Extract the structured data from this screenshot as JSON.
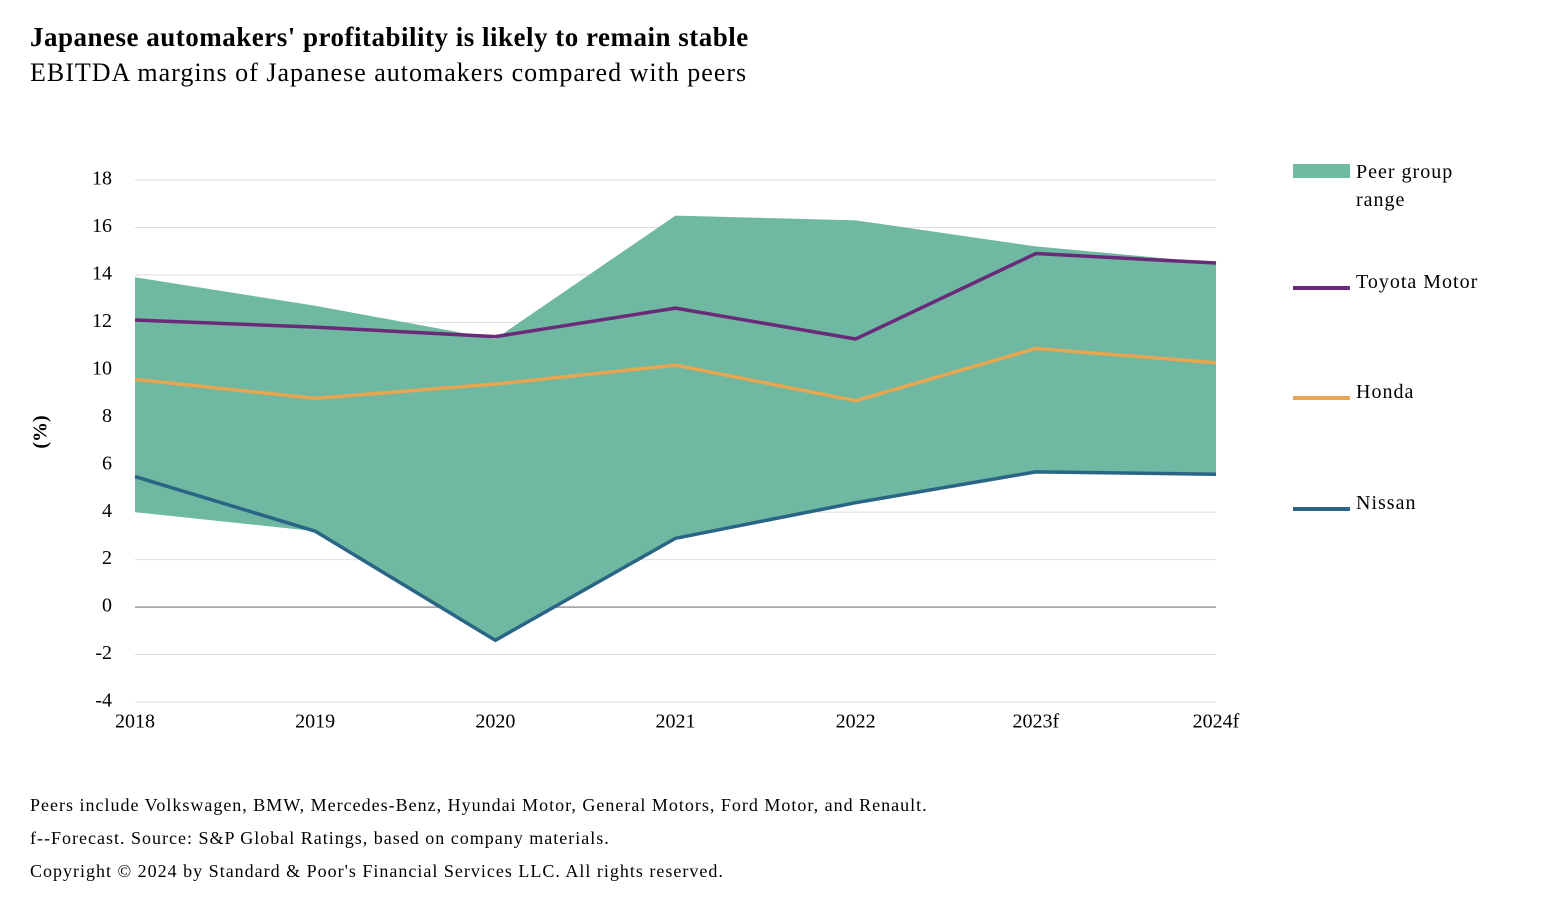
{
  "chart_data": {
    "type": "line",
    "title": "Japanese automakers' profitability is likely to remain stable",
    "subtitle": "EBITDA margins of Japanese automakers compared with peers",
    "y_label": "(%)",
    "categories": [
      "2018",
      "2019",
      "2020",
      "2021",
      "2022",
      "2023f",
      "2024f"
    ],
    "ylim": [
      -4,
      18
    ],
    "yticks": [
      -4,
      -2,
      0,
      2,
      4,
      6,
      8,
      10,
      12,
      14,
      16,
      18
    ],
    "grid": true,
    "series": [
      {
        "name": "Peer group range",
        "type": "area-range",
        "color": "#6fb8a1",
        "low": [
          4.0,
          3.2,
          -1.4,
          2.9,
          4.4,
          5.7,
          5.6
        ],
        "high": [
          13.9,
          12.7,
          11.3,
          16.5,
          16.3,
          15.2,
          14.5
        ]
      },
      {
        "name": "Toyota Motor",
        "color": "#6a2a7a",
        "values": [
          12.1,
          11.8,
          11.4,
          12.6,
          11.3,
          14.9,
          14.5
        ]
      },
      {
        "name": "Honda",
        "color": "#e8a650",
        "values": [
          9.6,
          8.8,
          9.4,
          10.2,
          8.7,
          10.9,
          10.3
        ]
      },
      {
        "name": "Nissan",
        "color": "#2b6585",
        "values": [
          5.5,
          3.2,
          -1.4,
          2.9,
          4.4,
          5.7,
          5.6
        ]
      }
    ],
    "notes": [
      "Peers include Volkswagen, BMW, Mercedes-Benz, Hyundai Motor, General Motors, Ford Motor, and Renault.",
      "f--Forecast. Source: S&P Global Ratings, based on company materials.",
      "Copyright © 2024 by Standard & Poor's Financial Services LLC. All rights reserved."
    ]
  }
}
